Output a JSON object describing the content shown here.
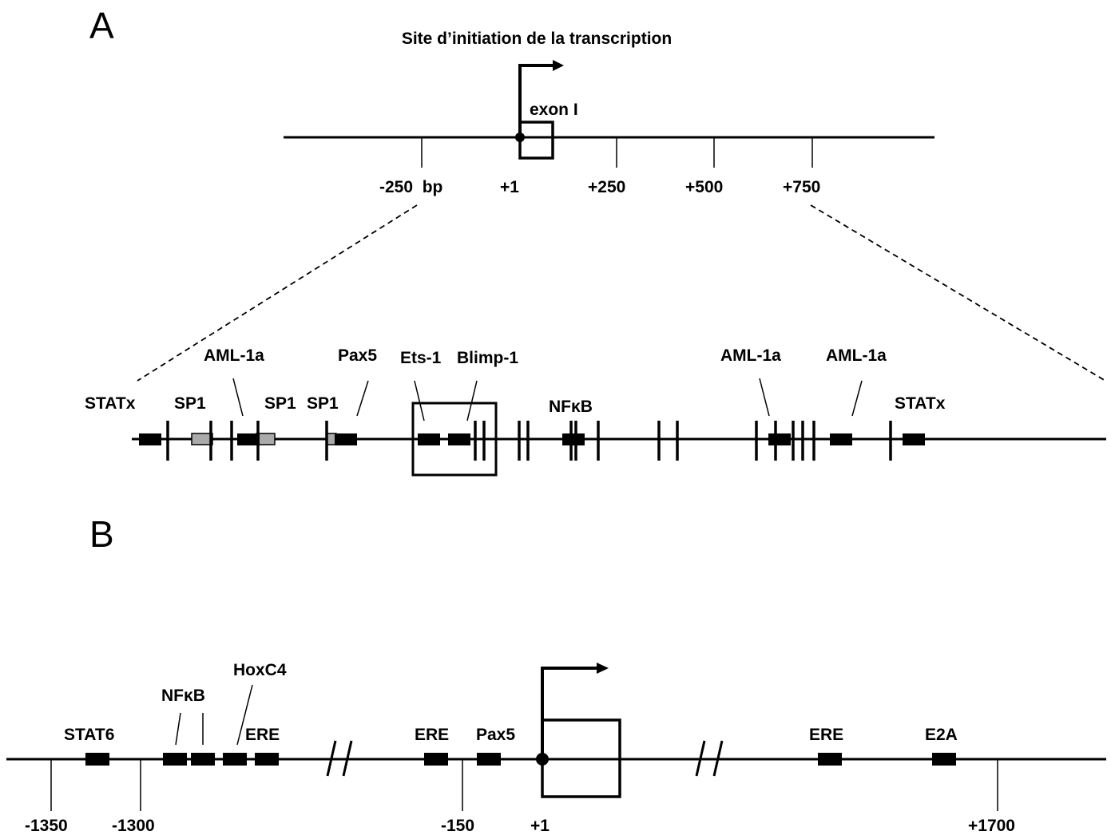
{
  "panel_a": {
    "letter": "A",
    "title": "Site d’initiation de la transcription",
    "exon_label": "exon I",
    "scale_labels": [
      "-250  bp",
      "+1",
      "+250",
      "+500",
      "+750"
    ],
    "sites": {
      "statx_left": "STATx",
      "sp1_a": "SP1",
      "aml_a": "AML-1a",
      "sp1_b": "SP1",
      "sp1_c": "SP1",
      "pax5": "Pax5",
      "ets1": "Ets-1",
      "blimp1": "Blimp-1",
      "nfkb": "NFκB",
      "aml_b": "AML-1a",
      "aml_c": "AML-1a",
      "statx_right": "STATx"
    }
  },
  "panel_b": {
    "letter": "B",
    "sites": {
      "stat6": "STAT6",
      "nfkb": "NFκB",
      "hoxc4": "HoxC4",
      "ere_1": "ERE",
      "ere_2": "ERE",
      "pax5": "Pax5",
      "ere_3": "ERE",
      "e2a": "E2A"
    },
    "scale_labels": [
      "-1350",
      "-1300",
      "-150",
      "+1",
      "+1700"
    ]
  },
  "colors": {
    "line": "#000000",
    "box": "#000000",
    "sp1_box": "#aaaaaa"
  }
}
